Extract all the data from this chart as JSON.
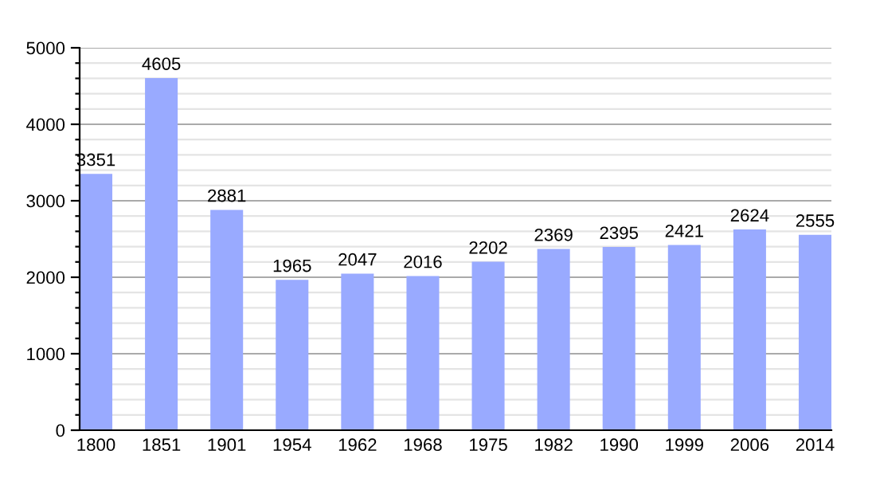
{
  "chart_data": {
    "type": "bar",
    "categories": [
      "1800",
      "1851",
      "1901",
      "1954",
      "1962",
      "1968",
      "1975",
      "1982",
      "1990",
      "1999",
      "2006",
      "2014"
    ],
    "values": [
      3351,
      4605,
      2881,
      1965,
      2047,
      2016,
      2202,
      2369,
      2395,
      2421,
      2624,
      2555
    ],
    "color": "#99aaff",
    "data_labels": true,
    "ylim": [
      0,
      5000
    ],
    "yticks": [
      0,
      {
        "value": 200,
        "label": null
      },
      {
        "value": 400,
        "label": null
      },
      {
        "value": 600,
        "label": null
      },
      {
        "value": 800,
        "label": null
      },
      1000,
      {
        "value": 1200,
        "label": null
      },
      {
        "value": 1400,
        "label": null
      },
      {
        "value": 1600,
        "label": null
      },
      {
        "value": 1800,
        "label": null
      },
      2000,
      {
        "value": 2200,
        "label": null
      },
      {
        "value": 2400,
        "label": null
      },
      {
        "value": 2600,
        "label": null
      },
      {
        "value": 2800,
        "label": null
      },
      3000,
      {
        "value": 3200,
        "label": null
      },
      {
        "value": 3400,
        "label": null
      },
      {
        "value": 3600,
        "label": null
      },
      {
        "value": 3800,
        "label": null
      },
      4000,
      {
        "value": 4200,
        "label": null
      },
      {
        "value": 4400,
        "label": null
      },
      {
        "value": 4600,
        "label": null
      },
      {
        "value": 4800,
        "label": null
      },
      5000
    ],
    "grid": "y"
  }
}
